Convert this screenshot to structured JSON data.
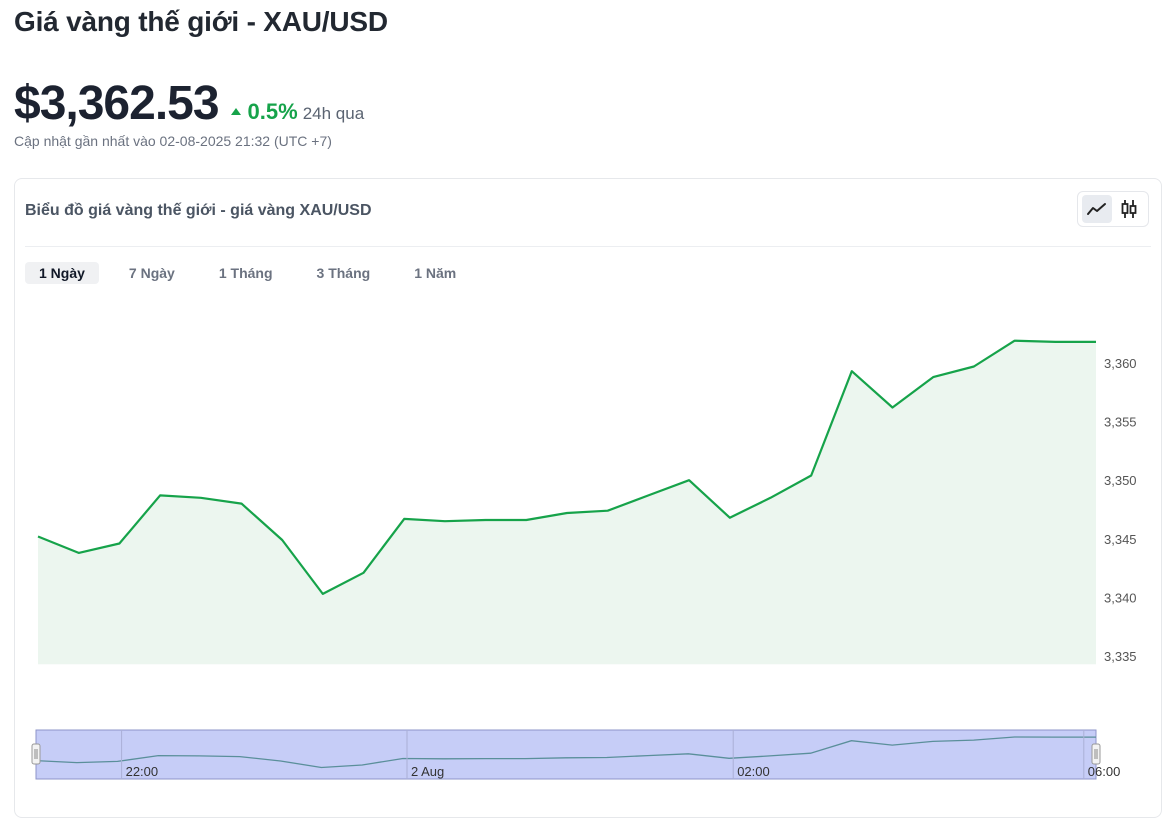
{
  "header": {
    "title": "Giá vàng thế giới - XAU/USD",
    "price": "$3,362.53",
    "change": "0.5%",
    "period": "24h qua",
    "updated": "Cập nhật gần nhất vào 02-08-2025 21:32 (UTC +7)"
  },
  "card": {
    "title": "Biểu đồ giá vàng thế giới - giá vàng XAU/USD",
    "chart_types": [
      "line-chart-icon",
      "candlestick-icon"
    ],
    "active_chart_type": 0
  },
  "tabs": [
    {
      "label": "1 Ngày",
      "active": true
    },
    {
      "label": "7 Ngày",
      "active": false
    },
    {
      "label": "1 Tháng",
      "active": false
    },
    {
      "label": "3 Tháng",
      "active": false
    },
    {
      "label": "1 Năm",
      "active": false
    }
  ],
  "colors": {
    "line": "#16a34a",
    "area": "#ecf6ef",
    "positive": "#16a34a",
    "navigator_fill": "#c6cdf7",
    "navigator_border": "#8e94c8"
  },
  "chart_data": {
    "type": "area",
    "y_ticks": [
      3335,
      3340,
      3345,
      3350,
      3355,
      3360
    ],
    "y_tick_labels": [
      "3,335",
      "3,340",
      "3,345",
      "3,350",
      "3,355",
      "3,360"
    ],
    "ylim": [
      3335,
      3361.9
    ],
    "grid": false,
    "values": [
      3345.2,
      3343.8,
      3344.6,
      3348.7,
      3348.5,
      3348.0,
      3344.9,
      3340.3,
      3342.1,
      3346.7,
      3346.5,
      3346.6,
      3346.6,
      3347.2,
      3347.4,
      3348.7,
      3350.0,
      3346.8,
      3348.5,
      3350.4,
      3359.3,
      3356.2,
      3358.8,
      3359.7,
      3361.9,
      3361.8,
      3361.8
    ],
    "navigator": {
      "x_labels": [
        "22:00",
        "2 Aug",
        "02:00",
        "06:00"
      ],
      "x_label_positions": [
        2.1,
        9.1,
        17.1,
        25.7
      ]
    }
  }
}
